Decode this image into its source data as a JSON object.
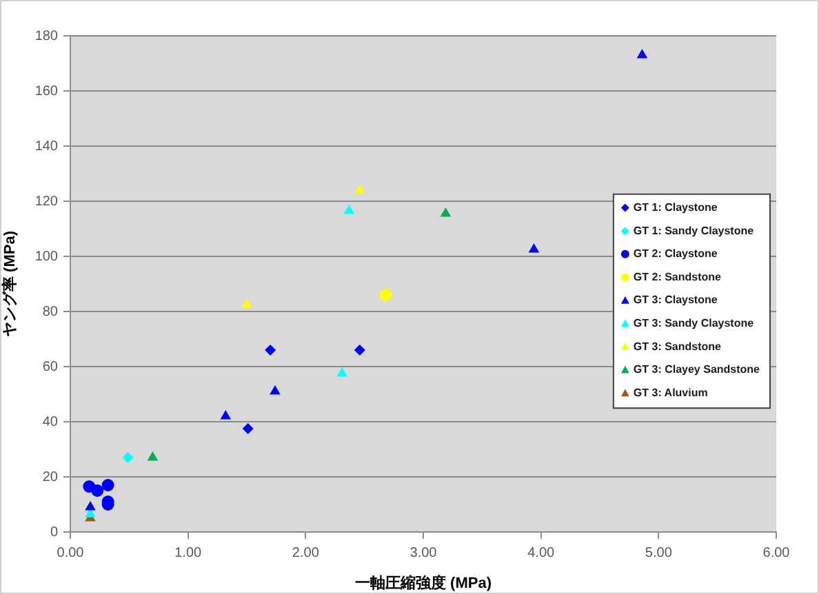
{
  "chart_data": {
    "type": "scatter",
    "xlabel": "一軸圧縮強度 (MPa)",
    "ylabel": "ヤング率 (MPa)",
    "xlim": [
      0,
      6
    ],
    "xticks": [
      {
        "value": 0,
        "label": "0.00"
      },
      {
        "value": 1,
        "label": "1.00"
      },
      {
        "value": 2,
        "label": "2.00"
      },
      {
        "value": 3,
        "label": "3.00"
      },
      {
        "value": 4,
        "label": "4.00"
      },
      {
        "value": 5,
        "label": "5.00"
      },
      {
        "value": 6,
        "label": "6.00"
      }
    ],
    "ylim": [
      0,
      180
    ],
    "yticks": [
      0,
      20,
      40,
      60,
      80,
      100,
      120,
      140,
      160,
      180
    ],
    "grid": "y",
    "legend": "right",
    "series": [
      {
        "name": "GT 1: Claystone",
        "color": "#0000ff",
        "marker": "diamond",
        "x": [
          1.7,
          2.46,
          1.51
        ],
        "values": [
          66,
          66,
          37.5
        ]
      },
      {
        "name": "GT 1: Sandy Claystone",
        "color": "#00ffff",
        "marker": "diamond",
        "x": [
          0.49
        ],
        "values": [
          27
        ]
      },
      {
        "name": "GT 2: Claystone",
        "color": "#0000ff",
        "marker": "circle",
        "x": [
          0.16,
          0.23,
          0.32,
          0.32,
          0.32
        ],
        "values": [
          16.5,
          15,
          17,
          11,
          10
        ]
      },
      {
        "name": "GT 2: Sandstone",
        "color": "#ffff00",
        "marker": "circle",
        "x": [
          2.68
        ],
        "values": [
          86
        ]
      },
      {
        "name": "GT 3: Claystone",
        "color": "#0000ff",
        "marker": "triangle",
        "x": [
          4.86,
          3.94,
          1.32,
          1.74,
          0.17
        ],
        "values": [
          173,
          102.5,
          42,
          51,
          9
        ]
      },
      {
        "name": "GT 3: Sandy Claystone",
        "color": "#00ffff",
        "marker": "triangle",
        "x": [
          2.37,
          2.31,
          0.17
        ],
        "values": [
          116.5,
          57.5,
          6.5
        ]
      },
      {
        "name": "GT 3: Sandstone",
        "color": "#ffff00",
        "marker": "triangle",
        "x": [
          2.46,
          1.5
        ],
        "values": [
          124,
          82.5
        ]
      },
      {
        "name": "GT 3: Clayey Sandstone",
        "color": "#00b050",
        "marker": "triangle",
        "x": [
          3.19,
          0.7
        ],
        "values": [
          115.5,
          27
        ]
      },
      {
        "name": "GT 3: Aluvium",
        "color": "#9c5a1f",
        "marker": "triangle",
        "x": [
          0.17
        ],
        "values": [
          5
        ]
      }
    ]
  }
}
